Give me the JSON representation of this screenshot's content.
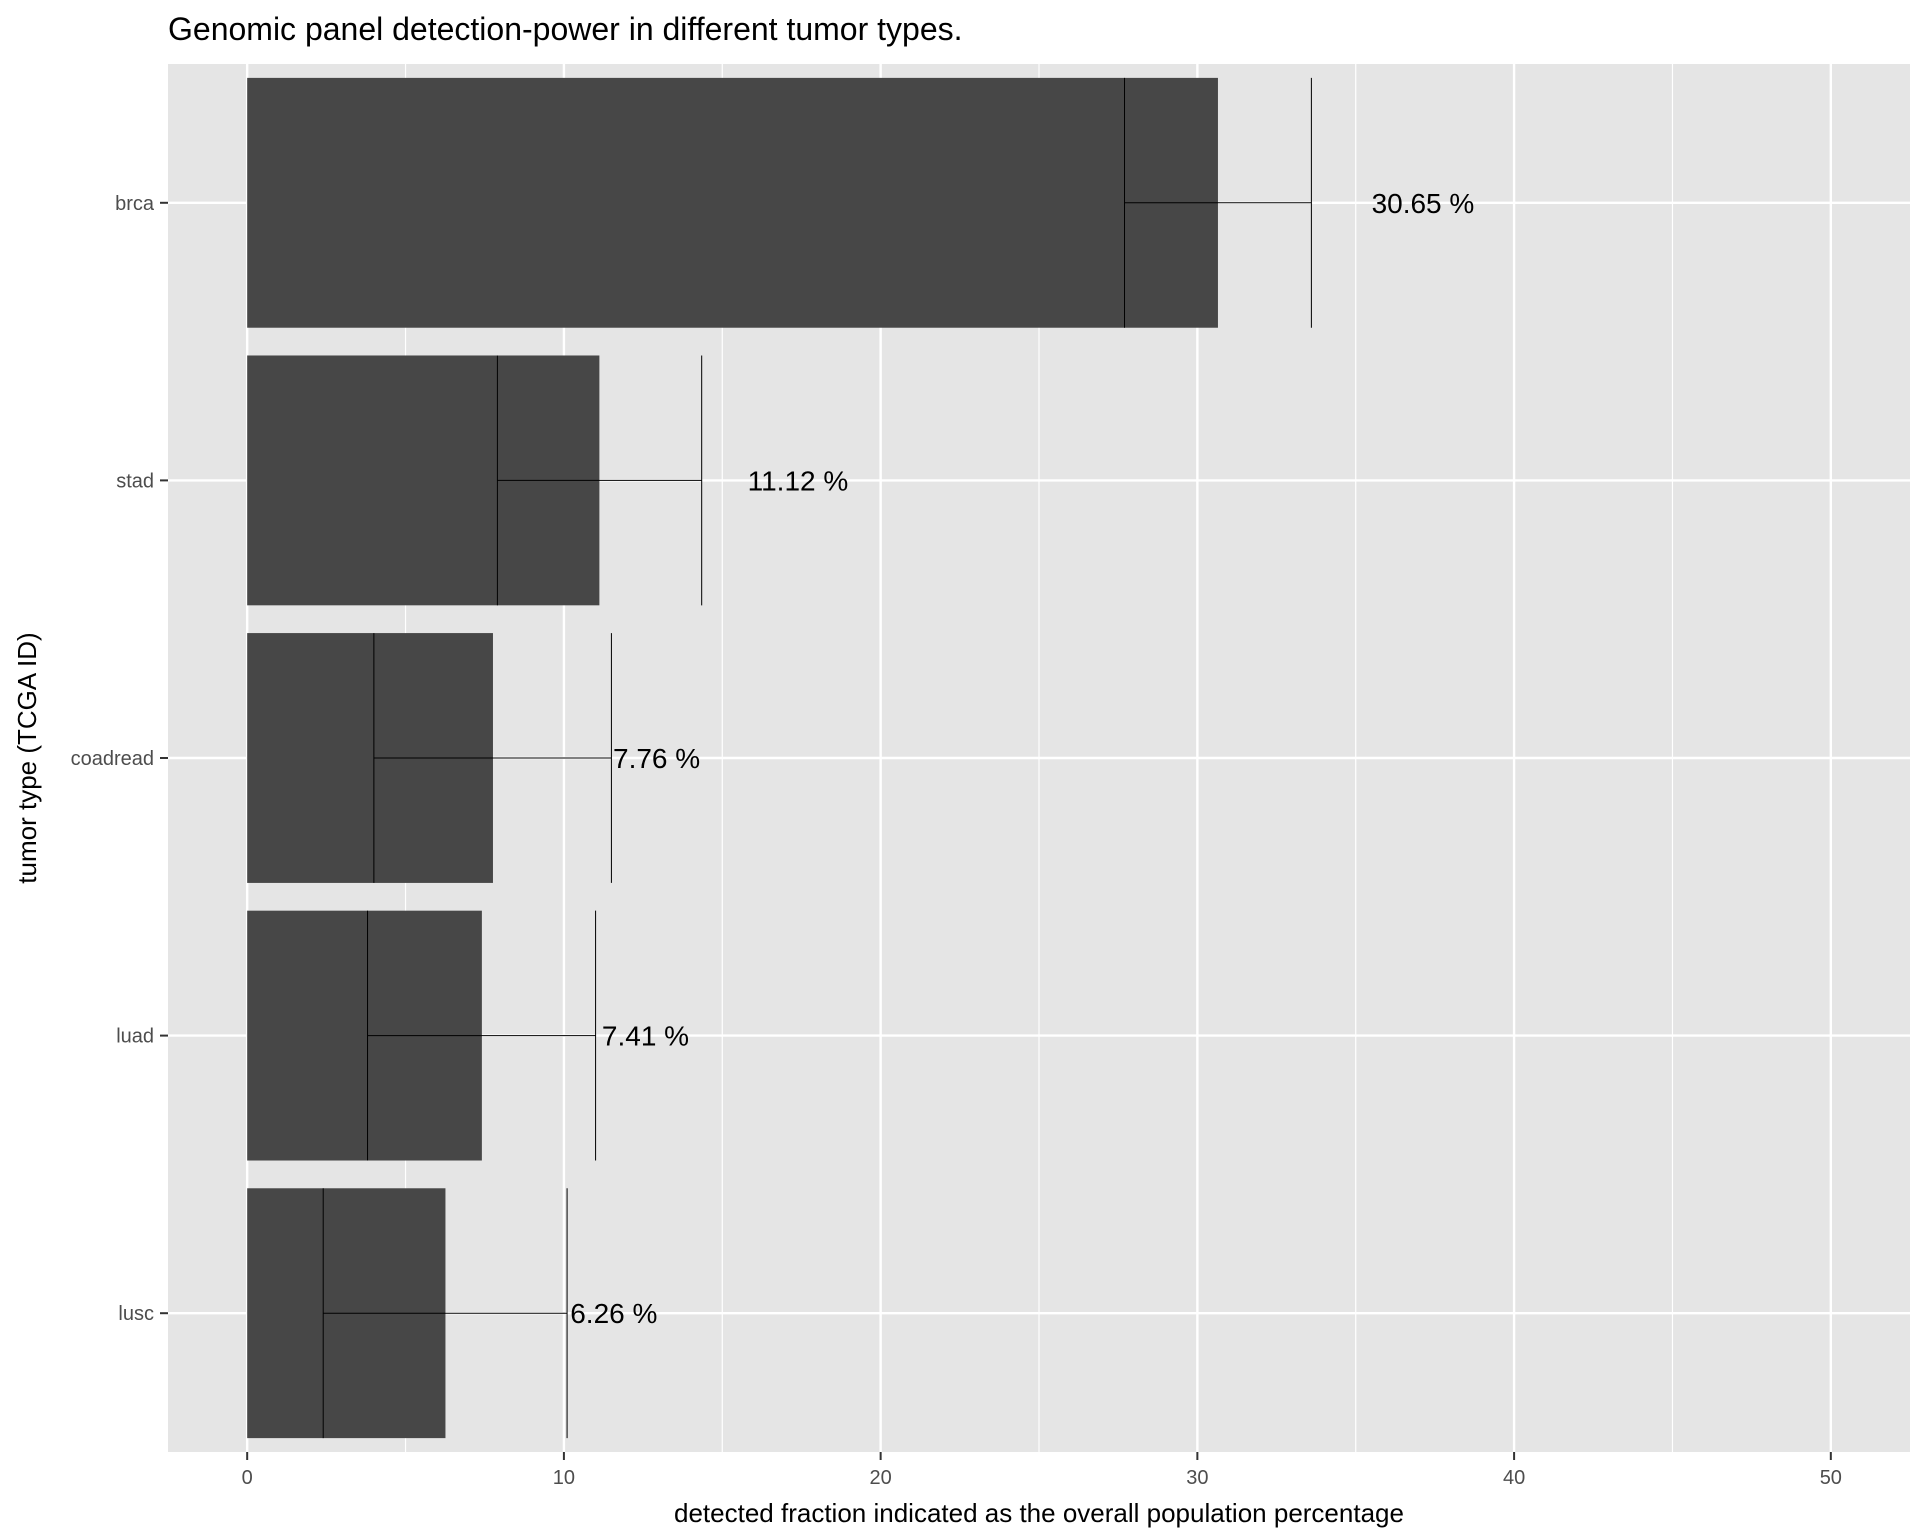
{
  "chart_data": {
    "type": "bar",
    "orientation": "horizontal",
    "title": "Genomic panel detection-power in different tumor types.",
    "xlabel": "detected fraction indicated as the overall population percentage",
    "ylabel": "tumor type (TCGA ID)",
    "xlim": [
      -2.5,
      52.5
    ],
    "xticks": [
      0,
      10,
      20,
      30,
      40,
      50
    ],
    "xtick_labels": [
      "0",
      "10",
      "20",
      "30",
      "40",
      "50"
    ],
    "categories": [
      "brca",
      "stad",
      "coadread",
      "luad",
      "lusc"
    ],
    "values": [
      30.65,
      11.12,
      7.76,
      7.41,
      6.26
    ],
    "error_low": [
      27.7,
      7.9,
      4.0,
      3.8,
      2.4
    ],
    "error_high": [
      33.6,
      14.35,
      11.5,
      11.0,
      10.1
    ],
    "data_labels": [
      "30.65 %",
      "11.12 %",
      "7.76 %",
      "7.41 %",
      "6.26 %"
    ],
    "label_x": [
      35.5,
      15.8,
      11.55,
      11.2,
      10.2
    ],
    "grid": true,
    "legend": "none",
    "colors": {
      "bar": "#474747",
      "panel": "#e5e5e5",
      "grid": "#ffffff",
      "errorbar": "#000000"
    }
  }
}
